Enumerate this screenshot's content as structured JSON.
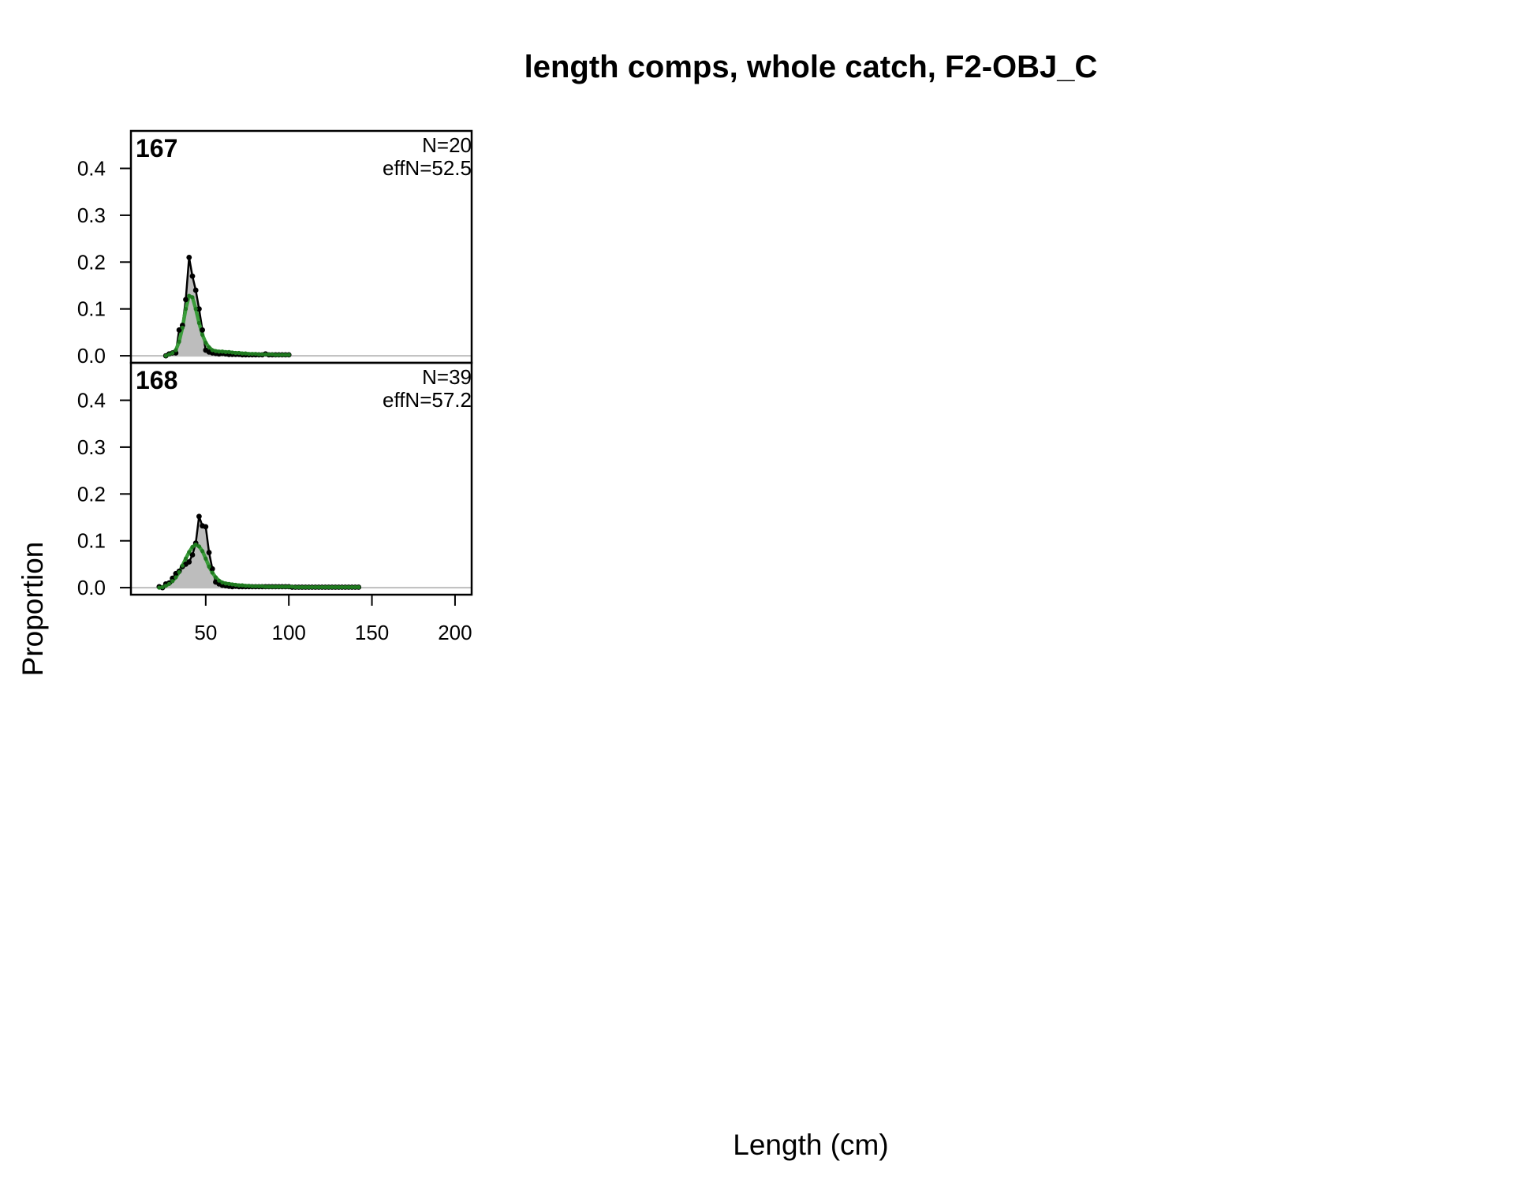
{
  "chart_data": {
    "type": "area",
    "title": "length comps, whole catch, F2-OBJ_C",
    "xlabel": "Length (cm)",
    "ylabel": "Proportion",
    "xlim": [
      5,
      210
    ],
    "ylim": [
      -0.015,
      0.48
    ],
    "x_ticks": [
      "50",
      "100",
      "150",
      "200"
    ],
    "x_tick_values": [
      50,
      100,
      150,
      200
    ],
    "y_ticks": [
      "0.0",
      "0.1",
      "0.2",
      "0.3",
      "0.4"
    ],
    "y_tick_values": [
      0.0,
      0.1,
      0.2,
      0.3,
      0.4
    ],
    "colors": {
      "observed_fill": "#bdbdbd",
      "observed_line": "#000000",
      "expected_line": "#3a9c3a",
      "expected_points": "#1f7a1f",
      "zero_line": "#bdbdbd"
    },
    "panels": [
      {
        "label": "167",
        "n_label": "N=20",
        "effn_label": "effN=52.5",
        "observed": {
          "x": [
            26,
            28,
            30,
            32,
            34,
            36,
            38,
            40,
            42,
            44,
            46,
            48,
            50,
            52,
            54,
            56,
            58,
            60,
            62,
            64,
            66,
            68,
            70,
            72,
            74,
            76,
            78,
            80,
            82,
            84,
            86,
            88,
            90,
            92,
            94,
            96,
            98,
            100
          ],
          "y": [
            0.0,
            0.004,
            0.006,
            0.006,
            0.055,
            0.065,
            0.12,
            0.21,
            0.17,
            0.14,
            0.1,
            0.055,
            0.012,
            0.008,
            0.006,
            0.005,
            0.004,
            0.005,
            0.004,
            0.003,
            0.003,
            0.003,
            0.003,
            0.002,
            0.002,
            0.002,
            0.002,
            0.002,
            0.002,
            0.002,
            0.004,
            0.002,
            0.002,
            0.002,
            0.002,
            0.002,
            0.002,
            0.002
          ]
        },
        "expected": {
          "x": [
            26,
            28,
            30,
            32,
            34,
            36,
            38,
            40,
            42,
            44,
            46,
            48,
            50,
            52,
            54,
            56,
            58,
            60,
            62,
            64,
            66,
            68,
            70,
            72,
            74,
            76,
            78,
            80,
            82,
            84,
            86,
            88,
            90,
            92,
            94,
            96,
            98,
            100
          ],
          "y": [
            0.0,
            0.003,
            0.006,
            0.012,
            0.03,
            0.06,
            0.1,
            0.128,
            0.125,
            0.1,
            0.07,
            0.045,
            0.028,
            0.018,
            0.012,
            0.01,
            0.009,
            0.009,
            0.008,
            0.008,
            0.007,
            0.006,
            0.006,
            0.005,
            0.005,
            0.004,
            0.004,
            0.004,
            0.003,
            0.003,
            0.003,
            0.003,
            0.003,
            0.002,
            0.002,
            0.002,
            0.002,
            0.002
          ]
        }
      },
      {
        "label": "168",
        "n_label": "N=39",
        "effn_label": "effN=57.2",
        "observed": {
          "x": [
            22,
            24,
            26,
            28,
            30,
            32,
            34,
            36,
            38,
            40,
            42,
            44,
            46,
            48,
            50,
            52,
            54,
            56,
            58,
            60,
            62,
            64,
            66,
            68,
            70,
            72,
            74,
            76,
            78,
            80,
            82,
            84,
            86,
            88,
            90,
            92,
            94,
            96,
            98,
            100,
            102,
            104,
            106,
            108,
            110,
            112,
            114,
            116,
            118,
            120,
            122,
            124,
            126,
            128,
            130,
            132,
            134,
            136,
            138,
            140,
            142
          ],
          "y": [
            0.002,
            0.0,
            0.008,
            0.01,
            0.02,
            0.03,
            0.035,
            0.045,
            0.05,
            0.055,
            0.07,
            0.095,
            0.152,
            0.132,
            0.13,
            0.075,
            0.04,
            0.012,
            0.008,
            0.005,
            0.004,
            0.003,
            0.002,
            0.003,
            0.002,
            0.002,
            0.002,
            0.002,
            0.002,
            0.002,
            0.002,
            0.002,
            0.002,
            0.002,
            0.002,
            0.002,
            0.002,
            0.002,
            0.002,
            0.002,
            0.001,
            0.001,
            0.001,
            0.001,
            0.001,
            0.001,
            0.001,
            0.001,
            0.001,
            0.001,
            0.001,
            0.001,
            0.001,
            0.001,
            0.001,
            0.001,
            0.001,
            0.001,
            0.001,
            0.001,
            0.001
          ]
        },
        "expected": {
          "x": [
            22,
            24,
            26,
            28,
            30,
            32,
            34,
            36,
            38,
            40,
            42,
            44,
            46,
            48,
            50,
            52,
            54,
            56,
            58,
            60,
            62,
            64,
            66,
            68,
            70,
            72,
            74,
            76,
            78,
            80,
            82,
            84,
            86,
            88,
            90,
            92,
            94,
            96,
            98,
            100,
            102,
            104,
            106,
            108,
            110,
            112,
            114,
            116,
            118,
            120,
            122,
            124,
            126,
            128,
            130,
            132,
            134,
            136,
            138,
            140,
            142
          ],
          "y": [
            0.0,
            0.001,
            0.004,
            0.008,
            0.014,
            0.022,
            0.033,
            0.047,
            0.062,
            0.076,
            0.087,
            0.092,
            0.088,
            0.078,
            0.062,
            0.045,
            0.032,
            0.022,
            0.015,
            0.011,
            0.009,
            0.008,
            0.007,
            0.006,
            0.005,
            0.005,
            0.004,
            0.004,
            0.003,
            0.003,
            0.003,
            0.003,
            0.002,
            0.002,
            0.002,
            0.002,
            0.002,
            0.002,
            0.002,
            0.002,
            0.002,
            0.001,
            0.001,
            0.001,
            0.001,
            0.001,
            0.001,
            0.001,
            0.001,
            0.001,
            0.001,
            0.001,
            0.001,
            0.001,
            0.001,
            0.001,
            0.001,
            0.001,
            0.001,
            0.001,
            0.001
          ]
        }
      }
    ]
  }
}
